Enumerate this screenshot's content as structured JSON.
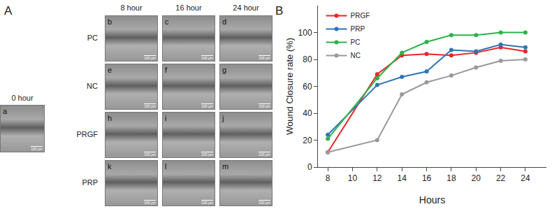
{
  "chart_data": {
    "type": "line",
    "title": "B",
    "x_label": "Hours",
    "y_label": "Wound Closure rate (%)",
    "x": [
      8,
      12,
      14,
      16,
      18,
      20,
      22,
      24
    ],
    "series": [
      {
        "name": "PRGF",
        "color": "#e8262a",
        "values": [
          11,
          69,
          83,
          84,
          83,
          85,
          89,
          86
        ]
      },
      {
        "name": "PRP",
        "color": "#2e75b6",
        "values": [
          24,
          61,
          67,
          71,
          87,
          86,
          91,
          89
        ]
      },
      {
        "name": "PC",
        "color": "#2db34a",
        "values": [
          21,
          66,
          85,
          93,
          98,
          98,
          100,
          100
        ]
      },
      {
        "name": "NC",
        "color": "#999999",
        "values": [
          11,
          20,
          54,
          63,
          68,
          74,
          79,
          80
        ]
      }
    ],
    "xlim": [
      7.2,
      25.7
    ],
    "xticks": [
      8,
      10,
      12,
      14,
      16,
      18,
      20,
      22,
      24
    ],
    "ylim": [
      0,
      120
    ],
    "yticks": [
      0,
      20,
      40,
      60,
      80,
      100
    ],
    "grid": false,
    "legend": "upper left",
    "marker": "circle"
  },
  "panel_a": {
    "label": "A",
    "initial": {
      "time": "0 hour",
      "letter": "a"
    },
    "columns": [
      "8 hour",
      "16 hour",
      "24 hour"
    ],
    "rows": [
      {
        "label": "PC",
        "letters": [
          "b",
          "c",
          "d"
        ]
      },
      {
        "label": "NC",
        "letters": [
          "e",
          "f",
          "g"
        ]
      },
      {
        "label": "PRGF",
        "letters": [
          "h",
          "i",
          "j"
        ]
      },
      {
        "label": "PRP",
        "letters": [
          "k",
          "l",
          "m"
        ]
      }
    ],
    "scale_label": "100 μm"
  }
}
